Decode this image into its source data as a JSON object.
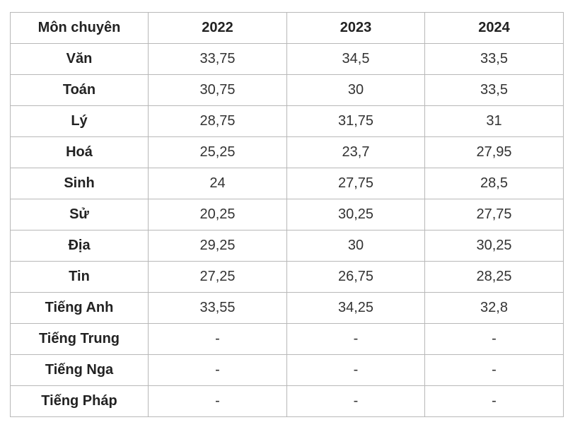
{
  "table": {
    "headers": [
      "Môn chuyên",
      "2022",
      "2023",
      "2024"
    ],
    "rows": [
      {
        "subject": "Văn",
        "values": [
          "33,75",
          "34,5",
          "33,5"
        ]
      },
      {
        "subject": "Toán",
        "values": [
          "30,75",
          "30",
          "33,5"
        ]
      },
      {
        "subject": "Lý",
        "values": [
          "28,75",
          "31,75",
          "31"
        ]
      },
      {
        "subject": "Hoá",
        "values": [
          "25,25",
          "23,7",
          "27,95"
        ]
      },
      {
        "subject": "Sinh",
        "values": [
          "24",
          "27,75",
          "28,5"
        ]
      },
      {
        "subject": "Sử",
        "values": [
          "20,25",
          "30,25",
          "27,75"
        ]
      },
      {
        "subject": "Địa",
        "values": [
          "29,25",
          "30",
          "30,25"
        ]
      },
      {
        "subject": "Tin",
        "values": [
          "27,25",
          "26,75",
          "28,25"
        ]
      },
      {
        "subject": "Tiếng Anh",
        "values": [
          "33,55",
          "34,25",
          "32,8"
        ]
      },
      {
        "subject": "Tiếng Trung",
        "values": [
          "-",
          "-",
          "-"
        ]
      },
      {
        "subject": "Tiếng Nga",
        "values": [
          "-",
          "-",
          "-"
        ]
      },
      {
        "subject": "Tiếng Pháp",
        "values": [
          "-",
          "-",
          "-"
        ]
      }
    ]
  }
}
